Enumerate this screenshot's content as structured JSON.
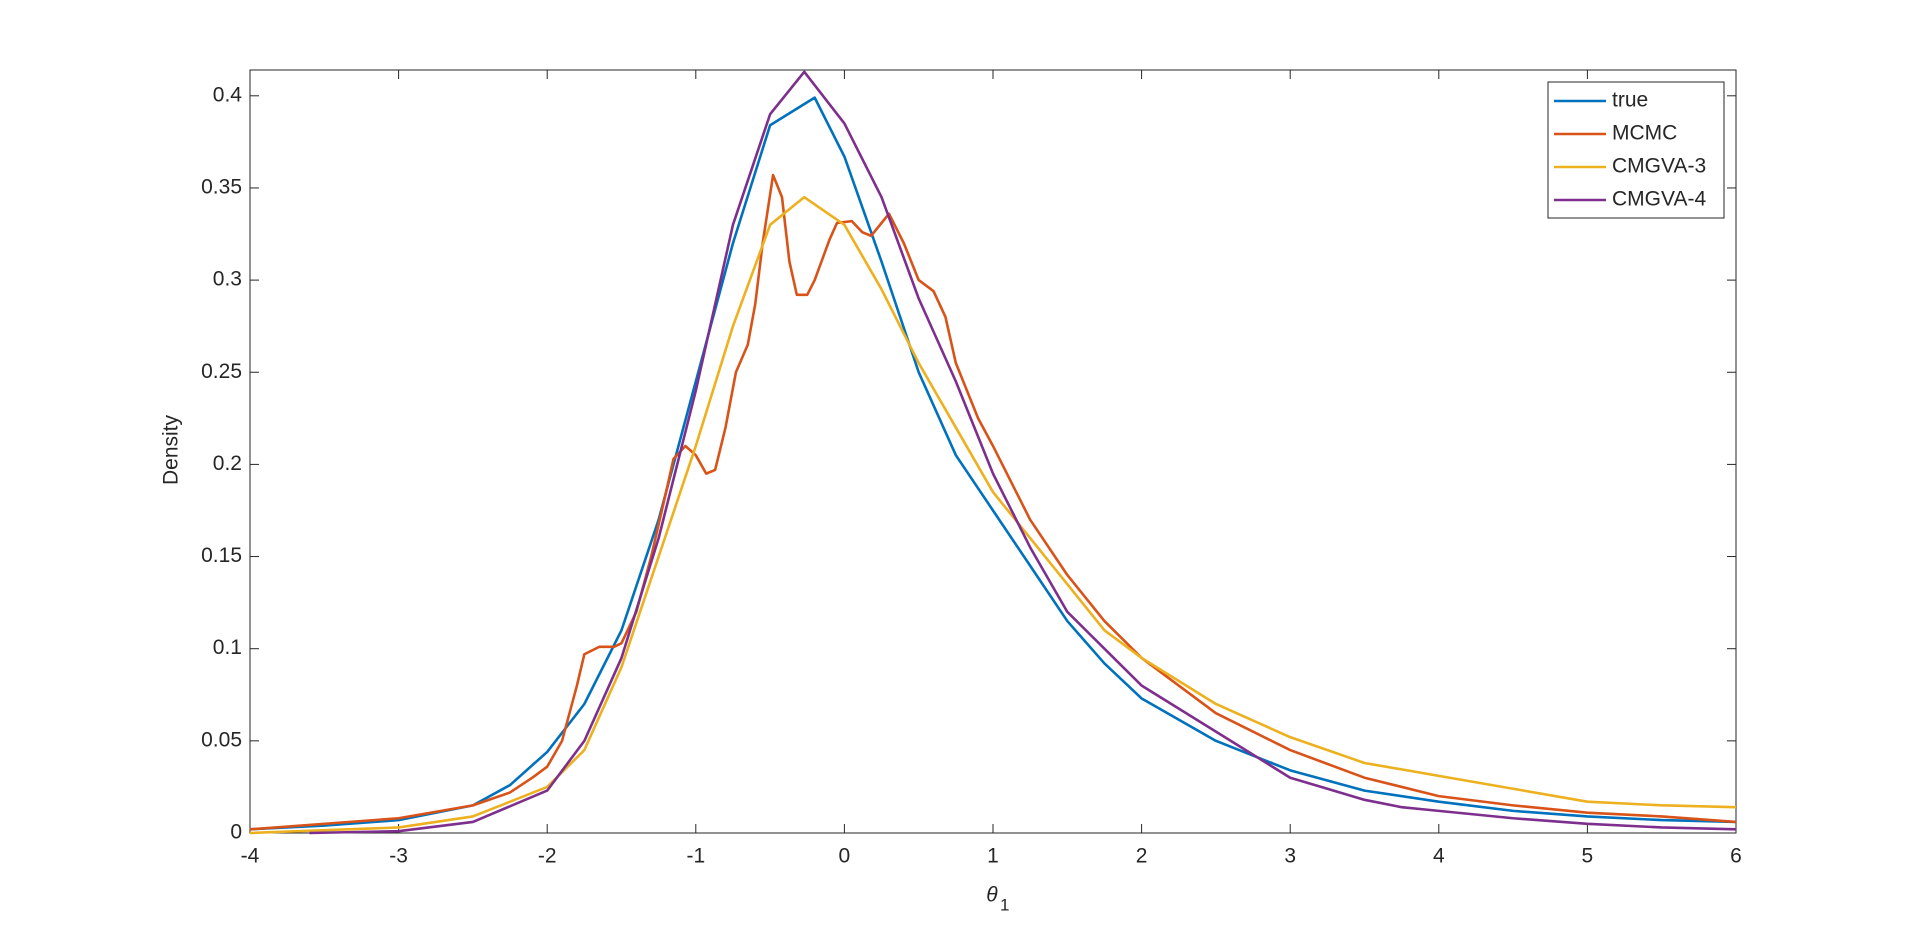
{
  "chart_data": {
    "type": "line",
    "x_label": "θ",
    "x_label_subscript": "1",
    "y_label": "Density",
    "xlim": [
      -4,
      6
    ],
    "xticks": [
      -4,
      -3,
      -2,
      -1,
      0,
      1,
      2,
      3,
      4,
      5,
      6
    ],
    "ylim": [
      0,
      0.414
    ],
    "yticks": [
      0,
      0.05,
      0.1,
      0.15,
      0.2,
      0.25,
      0.3,
      0.35,
      0.4
    ],
    "legend": "top-right",
    "series": [
      {
        "name": "true",
        "color": "#0072BD",
        "x": [
          -4,
          -3.5,
          -3,
          -2.5,
          -2.25,
          -2,
          -1.75,
          -1.5,
          -1.25,
          -1,
          -0.75,
          -0.5,
          -0.2,
          0,
          0.25,
          0.5,
          0.75,
          1,
          1.25,
          1.5,
          1.75,
          2,
          2.5,
          3,
          3.5,
          4,
          4.5,
          5,
          5.5,
          6
        ],
        "values": [
          0.002,
          0.004,
          0.007,
          0.015,
          0.026,
          0.044,
          0.07,
          0.11,
          0.17,
          0.245,
          0.32,
          0.384,
          0.399,
          0.367,
          0.31,
          0.25,
          0.205,
          0.175,
          0.145,
          0.115,
          0.092,
          0.073,
          0.05,
          0.034,
          0.023,
          0.017,
          0.012,
          0.009,
          0.007,
          0.006
        ]
      },
      {
        "name": "MCMC",
        "color": "#D95319",
        "x": [
          -4,
          -3,
          -2.5,
          -2.25,
          -2.1,
          -2,
          -1.9,
          -1.8,
          -1.75,
          -1.65,
          -1.55,
          -1.5,
          -1.4,
          -1.3,
          -1.2,
          -1.15,
          -1.07,
          -1,
          -0.93,
          -0.87,
          -0.8,
          -0.73,
          -0.65,
          -0.6,
          -0.55,
          -0.48,
          -0.42,
          -0.37,
          -0.32,
          -0.25,
          -0.2,
          -0.1,
          -0.05,
          0.05,
          0.12,
          0.18,
          0.3,
          0.4,
          0.5,
          0.6,
          0.68,
          0.75,
          0.9,
          1,
          1.25,
          1.5,
          1.75,
          2,
          2.5,
          3,
          3.5,
          4,
          4.5,
          5,
          5.5,
          6
        ],
        "values": [
          0.002,
          0.008,
          0.015,
          0.022,
          0.03,
          0.036,
          0.05,
          0.08,
          0.097,
          0.101,
          0.101,
          0.103,
          0.12,
          0.15,
          0.185,
          0.203,
          0.21,
          0.205,
          0.195,
          0.197,
          0.22,
          0.25,
          0.265,
          0.287,
          0.32,
          0.357,
          0.345,
          0.31,
          0.292,
          0.292,
          0.3,
          0.322,
          0.331,
          0.332,
          0.326,
          0.324,
          0.336,
          0.32,
          0.3,
          0.294,
          0.28,
          0.255,
          0.225,
          0.21,
          0.17,
          0.14,
          0.115,
          0.095,
          0.065,
          0.045,
          0.03,
          0.02,
          0.015,
          0.011,
          0.009,
          0.006
        ]
      },
      {
        "name": "CMGVA-3",
        "color": "#EDB120",
        "x": [
          -4,
          -3,
          -2.5,
          -2,
          -1.75,
          -1.5,
          -1.25,
          -1,
          -0.75,
          -0.5,
          -0.27,
          0,
          0.25,
          0.5,
          0.75,
          1,
          1.25,
          1.5,
          1.75,
          2,
          2.5,
          3,
          3.5,
          4,
          4.5,
          5,
          5.5,
          6
        ],
        "values": [
          0,
          0.003,
          0.009,
          0.025,
          0.045,
          0.09,
          0.15,
          0.21,
          0.275,
          0.33,
          0.345,
          0.33,
          0.295,
          0.255,
          0.22,
          0.185,
          0.16,
          0.135,
          0.11,
          0.095,
          0.07,
          0.052,
          0.038,
          0.031,
          0.024,
          0.017,
          0.015,
          0.014
        ]
      },
      {
        "name": "CMGVA-4",
        "color": "#7E2F8E",
        "x": [
          -3.6,
          -3,
          -2.5,
          -2,
          -1.75,
          -1.5,
          -1.25,
          -1,
          -0.75,
          -0.5,
          -0.27,
          0,
          0.25,
          0.5,
          0.75,
          1,
          1.25,
          1.5,
          1.75,
          2,
          2.5,
          3,
          3.25,
          3.5,
          3.75,
          4,
          4.5,
          5,
          5.5,
          6
        ],
        "values": [
          0,
          0.001,
          0.006,
          0.023,
          0.05,
          0.095,
          0.16,
          0.24,
          0.33,
          0.39,
          0.413,
          0.385,
          0.345,
          0.29,
          0.245,
          0.195,
          0.155,
          0.12,
          0.1,
          0.08,
          0.055,
          0.03,
          0.024,
          0.018,
          0.014,
          0.012,
          0.008,
          0.005,
          0.003,
          0.002
        ]
      }
    ]
  }
}
